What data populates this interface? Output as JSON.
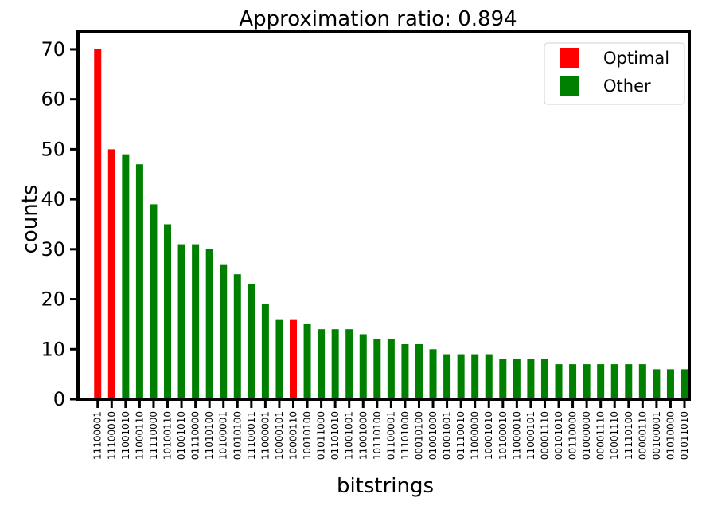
{
  "chart_data": {
    "type": "bar",
    "title": "Approximation ratio: 0.894",
    "xlabel": "bitstrings",
    "ylabel": "counts",
    "ylim": [
      0,
      73.5
    ],
    "yticks": [
      "0",
      "10",
      "20",
      "30",
      "40",
      "50",
      "60",
      "70"
    ],
    "ytick_values": [
      0,
      10,
      20,
      30,
      40,
      50,
      60,
      70
    ],
    "grid": false,
    "legend_position": "top-right",
    "legend": [
      {
        "label": "Optimal",
        "color": "#ff0000"
      },
      {
        "label": "Other",
        "color": "#008000"
      }
    ],
    "colors": {
      "optimal": "#ff0000",
      "other": "#008000"
    },
    "categories": [
      "11100001",
      "11100010",
      "11001010",
      "11000110",
      "11110000",
      "10100110",
      "01001010",
      "01110000",
      "11010100",
      "10100001",
      "01010100",
      "11100011",
      "11000001",
      "10000101",
      "10000110",
      "10010100",
      "01011000",
      "01101010",
      "11001001",
      "11001000",
      "10110100",
      "01100001",
      "11101000",
      "00010100",
      "01001000",
      "01001001",
      "01110010",
      "11000000",
      "10001010",
      "10100010",
      "11000010",
      "11000101",
      "00001110",
      "00101010",
      "00110000",
      "01000000",
      "00001110",
      "10001110",
      "11110100",
      "00000110",
      "00100001",
      "01010000",
      "01011010"
    ],
    "values": [
      70,
      50,
      49,
      47,
      39,
      35,
      31,
      31,
      30,
      27,
      25,
      23,
      19,
      16,
      16,
      15,
      14,
      14,
      14,
      13,
      12,
      12,
      11,
      11,
      10,
      9,
      9,
      9,
      9,
      8,
      8,
      8,
      8,
      7,
      7,
      7,
      7,
      7,
      7,
      7,
      6,
      6,
      6
    ],
    "bar_groups": [
      "optimal",
      "optimal",
      "other",
      "other",
      "other",
      "other",
      "other",
      "other",
      "other",
      "other",
      "other",
      "other",
      "other",
      "other",
      "optimal",
      "other",
      "other",
      "other",
      "other",
      "other",
      "other",
      "other",
      "other",
      "other",
      "other",
      "other",
      "other",
      "other",
      "other",
      "other",
      "other",
      "other",
      "other",
      "other",
      "other",
      "other",
      "other",
      "other",
      "other",
      "other",
      "other",
      "other",
      "other"
    ]
  }
}
